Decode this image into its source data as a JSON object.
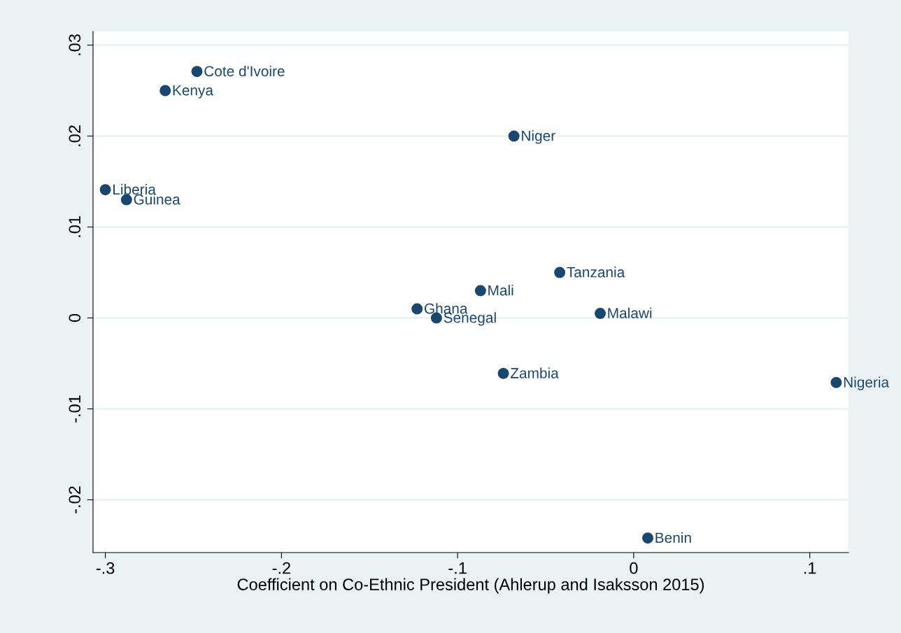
{
  "chart_data": {
    "type": "scatter",
    "xlabel": "Coefficient on Co-Ethnic President (Ahlerup and Isaksson 2015)",
    "x": [
      -0.248,
      -0.266,
      -0.068,
      -0.3,
      -0.288,
      -0.042,
      -0.087,
      -0.123,
      -0.112,
      -0.019,
      -0.074,
      0.115,
      0.008
    ],
    "series": [
      {
        "color": "#1a476f",
        "values": [
          0.0271,
          0.025,
          0.02,
          0.0141,
          0.013,
          0.005,
          0.003,
          0.001,
          0.0,
          0.0005,
          -0.0061,
          -0.0071,
          -0.0242
        ]
      }
    ],
    "annotations": [
      {
        "text": "Cote d'Ivoire",
        "x": -0.248,
        "y": 0.0271
      },
      {
        "text": "Kenya",
        "x": -0.266,
        "y": 0.025
      },
      {
        "text": "Niger",
        "x": -0.068,
        "y": 0.02
      },
      {
        "text": "Liberia",
        "x": -0.3,
        "y": 0.0141
      },
      {
        "text": "Guinea",
        "x": -0.288,
        "y": 0.013
      },
      {
        "text": "Tanzania",
        "x": -0.042,
        "y": 0.005
      },
      {
        "text": "Mali",
        "x": -0.087,
        "y": 0.003
      },
      {
        "text": "Ghana",
        "x": -0.123,
        "y": 0.001
      },
      {
        "text": "Senegal",
        "x": -0.112,
        "y": 0.0
      },
      {
        "text": "Malawi",
        "x": -0.019,
        "y": 0.0005
      },
      {
        "text": "Zambia",
        "x": -0.074,
        "y": -0.0061
      },
      {
        "text": "Nigeria",
        "x": 0.115,
        "y": -0.0071
      },
      {
        "text": "Benin",
        "x": 0.008,
        "y": -0.0242
      }
    ],
    "xlim": [
      -0.307,
      0.122
    ],
    "xticks": [
      {
        "value": -0.3,
        "label": "-.3"
      },
      {
        "value": -0.2,
        "label": "-.2"
      },
      {
        "value": -0.1,
        "label": "-.1"
      },
      0,
      {
        "value": 0.1,
        "label": ".1"
      }
    ],
    "ylim": [
      -0.0258,
      0.0315
    ],
    "yticks": [
      {
        "value": -0.02,
        "label": "-.02"
      },
      {
        "value": -0.01,
        "label": "-.01"
      },
      0,
      {
        "value": 0.01,
        "label": ".01"
      },
      {
        "value": 0.02,
        "label": ".02"
      },
      {
        "value": 0.03,
        "label": ".03"
      }
    ],
    "grid": "y",
    "marker": "circle"
  }
}
